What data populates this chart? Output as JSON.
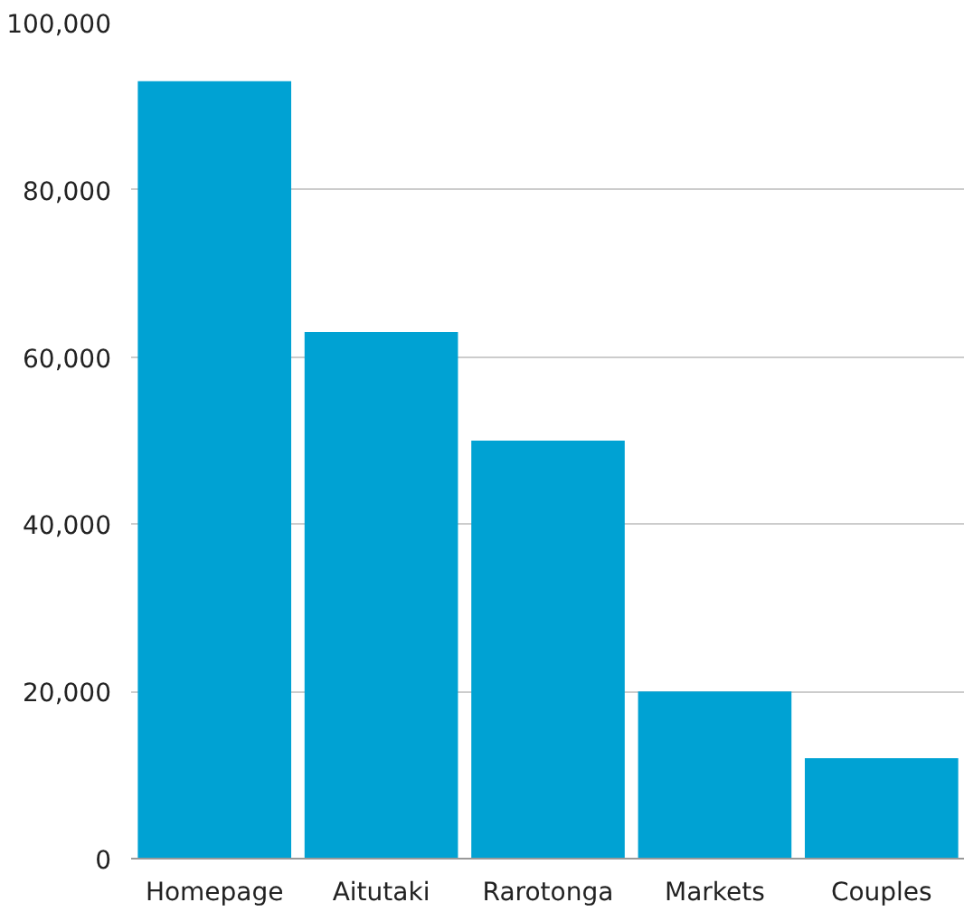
{
  "chart_data": {
    "type": "bar",
    "categories": [
      "Homepage",
      "Aitutaki",
      "Rarotonga",
      "Markets",
      "Couples"
    ],
    "values": [
      93000,
      63000,
      50000,
      20000,
      12000
    ],
    "color": "#00a2d3",
    "ylim": [
      0,
      100000
    ],
    "yticks": [
      {
        "value": 0,
        "label": "0"
      },
      {
        "value": 20000,
        "label": "20,000"
      },
      {
        "value": 40000,
        "label": "40,000"
      },
      {
        "value": 60000,
        "label": "60,000"
      },
      {
        "value": 80000,
        "label": "80,000"
      },
      {
        "value": 100000,
        "label": "100,000"
      }
    ],
    "grid": "y"
  }
}
